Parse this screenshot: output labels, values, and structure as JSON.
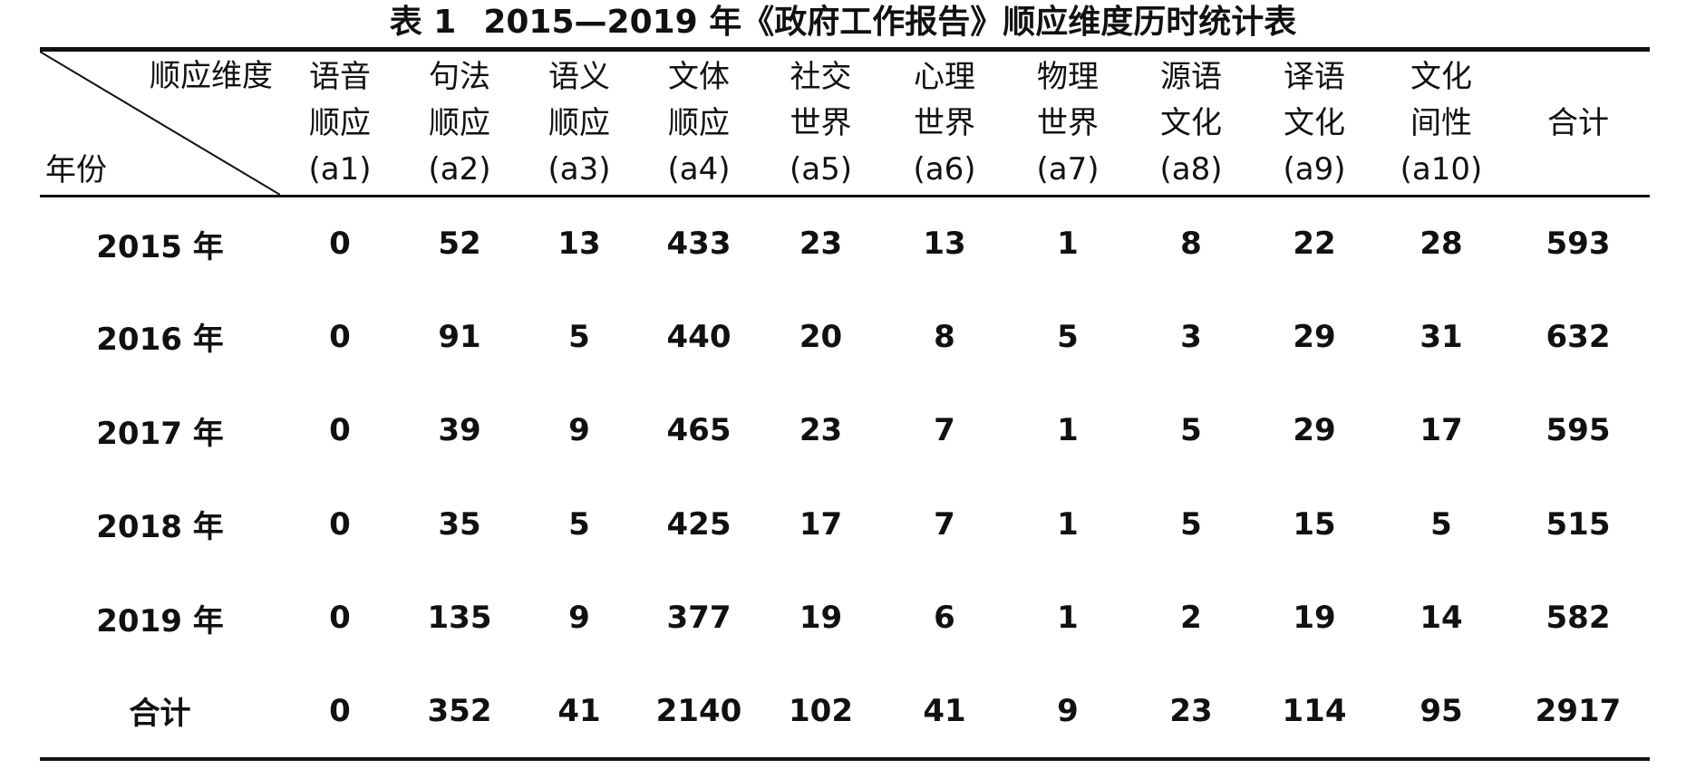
{
  "caption": {
    "label": "表 1",
    "title": "2015—2019 年《政府工作报告》顺应维度历时统计表"
  },
  "header": {
    "corner_top": "顺应维度",
    "corner_bottom": "年份",
    "columns": [
      {
        "line1": "语音",
        "line2": "顺应",
        "code": "(a1)"
      },
      {
        "line1": "句法",
        "line2": "顺应",
        "code": "(a2)"
      },
      {
        "line1": "语义",
        "line2": "顺应",
        "code": "(a3)"
      },
      {
        "line1": "文体",
        "line2": "顺应",
        "code": "(a4)"
      },
      {
        "line1": "社交",
        "line2": "世界",
        "code": "(a5)"
      },
      {
        "line1": "心理",
        "line2": "世界",
        "code": "(a6)"
      },
      {
        "line1": "物理",
        "line2": "世界",
        "code": "(a7)"
      },
      {
        "line1": "源语",
        "line2": "文化",
        "code": "(a8)"
      },
      {
        "line1": "译语",
        "line2": "文化",
        "code": "(a9)"
      },
      {
        "line1": "文化",
        "line2": "间性",
        "code": "(a10)"
      }
    ],
    "total": "合计"
  },
  "rows": [
    {
      "label": "2015 年",
      "cells": [
        "0",
        "52",
        "13",
        "433",
        "23",
        "13",
        "1",
        "8",
        "22",
        "28",
        "593"
      ]
    },
    {
      "label": "2016 年",
      "cells": [
        "0",
        "91",
        "5",
        "440",
        "20",
        "8",
        "5",
        "3",
        "29",
        "31",
        "632"
      ]
    },
    {
      "label": "2017 年",
      "cells": [
        "0",
        "39",
        "9",
        "465",
        "23",
        "7",
        "1",
        "5",
        "29",
        "17",
        "595"
      ]
    },
    {
      "label": "2018 年",
      "cells": [
        "0",
        "35",
        "5",
        "425",
        "17",
        "7",
        "1",
        "5",
        "15",
        "5",
        "515"
      ]
    },
    {
      "label": "2019 年",
      "cells": [
        "0",
        "135",
        "9",
        "377",
        "19",
        "6",
        "1",
        "2",
        "19",
        "14",
        "582"
      ]
    },
    {
      "label": "合计",
      "cells": [
        "0",
        "352",
        "41",
        "2140",
        "102",
        "41",
        "9",
        "23",
        "114",
        "95",
        "2917"
      ]
    }
  ]
}
